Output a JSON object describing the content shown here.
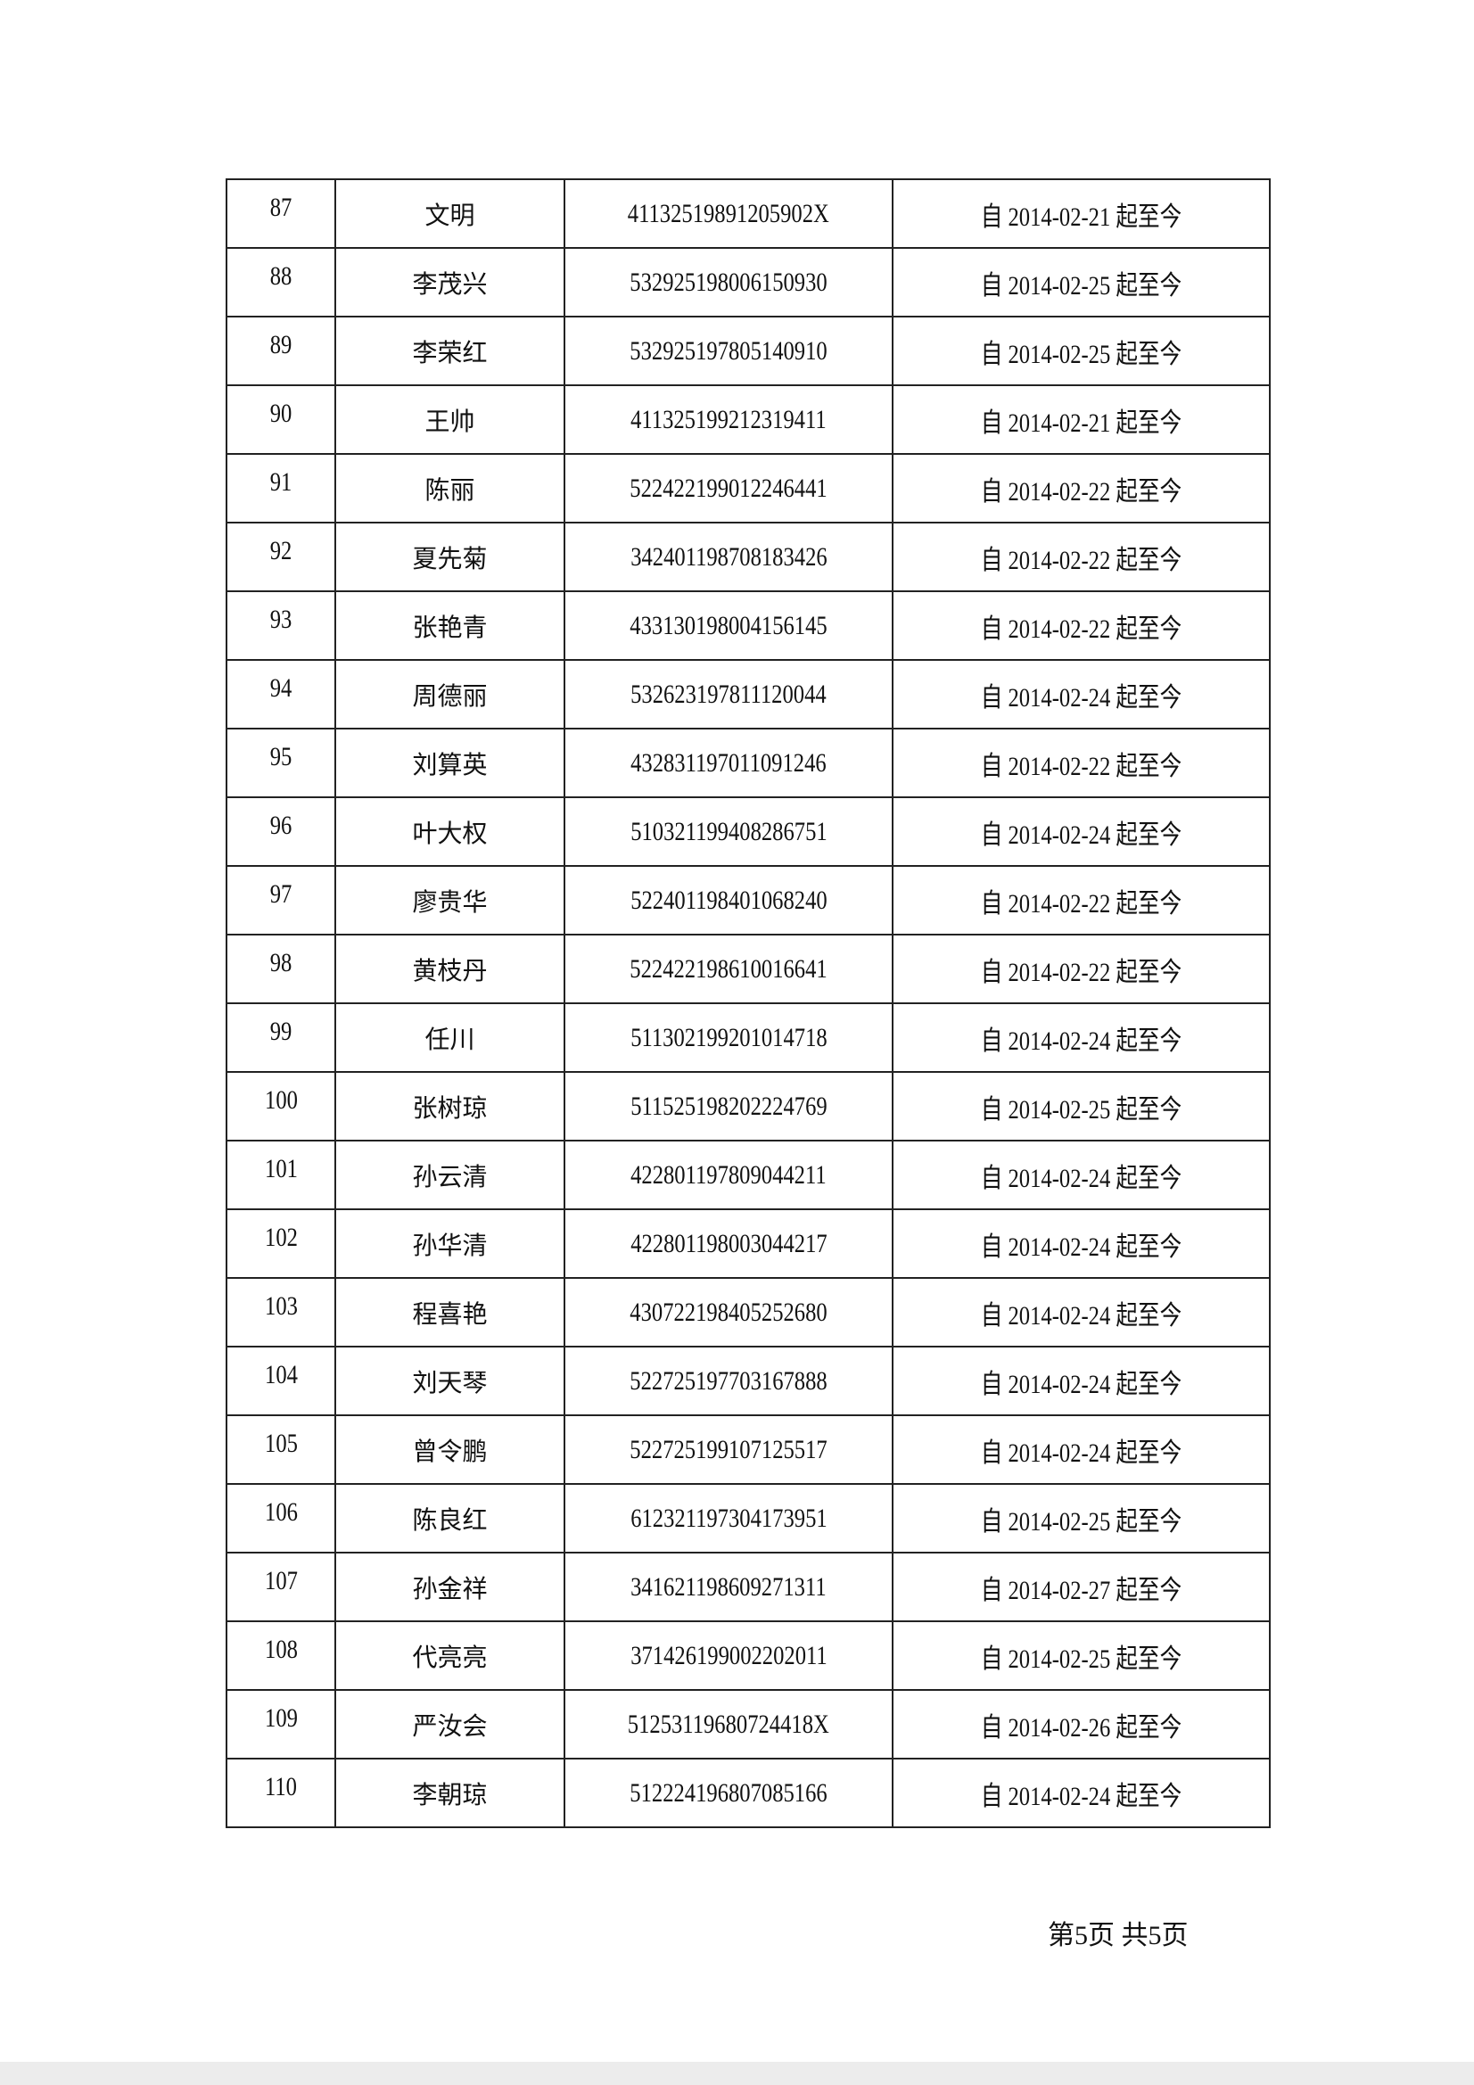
{
  "rows": [
    {
      "no": "87",
      "name": "文明",
      "id": "41132519891205902X",
      "period": "自 2014-02-21 起至今"
    },
    {
      "no": "88",
      "name": "李茂兴",
      "id": "532925198006150930",
      "period": "自 2014-02-25 起至今"
    },
    {
      "no": "89",
      "name": "李荣红",
      "id": "532925197805140910",
      "period": "自 2014-02-25 起至今"
    },
    {
      "no": "90",
      "name": "王帅",
      "id": "411325199212319411",
      "period": "自 2014-02-21 起至今"
    },
    {
      "no": "91",
      "name": "陈丽",
      "id": "522422199012246441",
      "period": "自 2014-02-22 起至今"
    },
    {
      "no": "92",
      "name": "夏先菊",
      "id": "342401198708183426",
      "period": "自 2014-02-22 起至今"
    },
    {
      "no": "93",
      "name": "张艳青",
      "id": "433130198004156145",
      "period": "自 2014-02-22 起至今"
    },
    {
      "no": "94",
      "name": "周德丽",
      "id": "532623197811120044",
      "period": "自 2014-02-24 起至今"
    },
    {
      "no": "95",
      "name": "刘算英",
      "id": "432831197011091246",
      "period": "自 2014-02-22 起至今"
    },
    {
      "no": "96",
      "name": "叶大权",
      "id": "510321199408286751",
      "period": "自 2014-02-24 起至今"
    },
    {
      "no": "97",
      "name": "廖贵华",
      "id": "522401198401068240",
      "period": "自 2014-02-22 起至今"
    },
    {
      "no": "98",
      "name": "黄枝丹",
      "id": "522422198610016641",
      "period": "自 2014-02-22 起至今"
    },
    {
      "no": "99",
      "name": "任川",
      "id": "511302199201014718",
      "period": "自 2014-02-24 起至今"
    },
    {
      "no": "100",
      "name": "张树琼",
      "id": "511525198202224769",
      "period": "自 2014-02-25 起至今"
    },
    {
      "no": "101",
      "name": "孙云清",
      "id": "422801197809044211",
      "period": "自 2014-02-24 起至今"
    },
    {
      "no": "102",
      "name": "孙华清",
      "id": "422801198003044217",
      "period": "自 2014-02-24 起至今"
    },
    {
      "no": "103",
      "name": "程喜艳",
      "id": "430722198405252680",
      "period": "自 2014-02-24 起至今"
    },
    {
      "no": "104",
      "name": "刘天琴",
      "id": "522725197703167888",
      "period": "自 2014-02-24 起至今"
    },
    {
      "no": "105",
      "name": "曾令鹏",
      "id": "522725199107125517",
      "period": "自 2014-02-24 起至今"
    },
    {
      "no": "106",
      "name": "陈良红",
      "id": "612321197304173951",
      "period": "自 2014-02-25 起至今"
    },
    {
      "no": "107",
      "name": "孙金祥",
      "id": "341621198609271311",
      "period": "自 2014-02-27 起至今"
    },
    {
      "no": "108",
      "name": "代亮亮",
      "id": "371426199002202011",
      "period": "自 2014-02-25 起至今"
    },
    {
      "no": "109",
      "name": "严汝会",
      "id": "51253119680724418X",
      "period": "自 2014-02-26 起至今"
    },
    {
      "no": "110",
      "name": "李朝琼",
      "id": "512224196807085166",
      "period": "自 2014-02-24 起至今"
    }
  ],
  "footer": {
    "page_label": "第5页  共5页"
  }
}
